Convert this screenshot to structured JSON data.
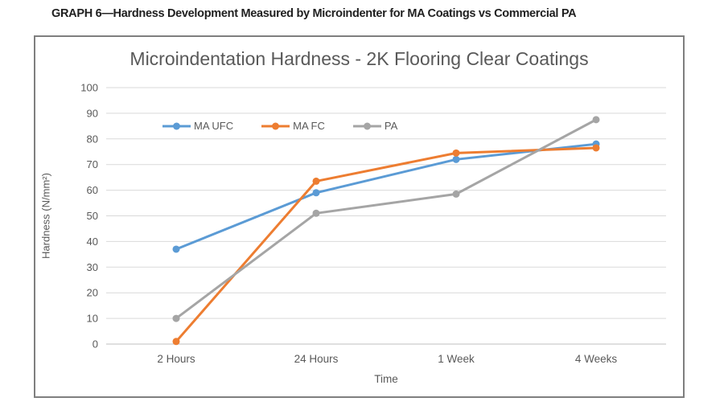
{
  "caption": "GRAPH 6—Hardness Development Measured by Microindenter for MA Coatings vs Commercial PA",
  "chart_data": {
    "type": "line",
    "title": "Microindentation Hardness - 2K Flooring Clear Coatings",
    "categories": [
      "2 Hours",
      "24 Hours",
      "1 Week",
      "4 Weeks"
    ],
    "series": [
      {
        "name": "MA UFC",
        "color": "#5B9BD5",
        "values": [
          37,
          59,
          72,
          78
        ]
      },
      {
        "name": "MA FC",
        "color": "#ED7D31",
        "values": [
          1,
          63.5,
          74.5,
          76.5
        ]
      },
      {
        "name": "PA",
        "color": "#A5A5A5",
        "values": [
          10,
          51,
          58.5,
          87.5
        ]
      }
    ],
    "xlabel": "Time",
    "ylabel": "Hardness (N/mm²)",
    "ylim": [
      0,
      100
    ],
    "ytick_step": 10,
    "grid": "horizontal",
    "legend_position": "inside-top-left",
    "colors": {
      "title_text": "#595959",
      "axis_text": "#595959",
      "gridline": "#D9D9D9",
      "axis_line": "#BFBFBF",
      "frame_border": "#7F7F7F",
      "caption_text": "#1F1F1F"
    }
  }
}
